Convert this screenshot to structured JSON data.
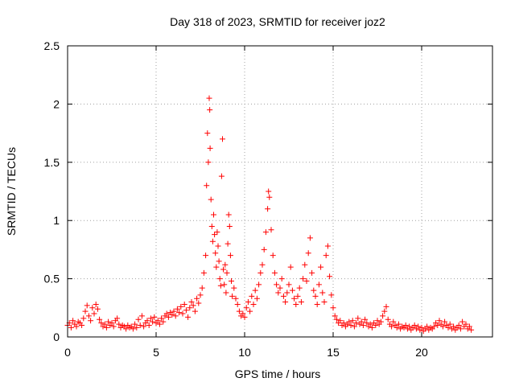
{
  "chart_data": {
    "type": "scatter",
    "title": "Day 318 of 2023, SRMTID for receiver joz2",
    "xlabel": "GPS time / hours",
    "ylabel": "SRMTID / TECUs",
    "xlim": [
      0,
      24
    ],
    "ylim": [
      0,
      2.5
    ],
    "xticks": [
      0,
      5,
      10,
      15,
      20
    ],
    "xtick_labels": [
      "0",
      "5",
      "10",
      "15",
      "20"
    ],
    "yticks": [
      0,
      0.5,
      1,
      1.5,
      2,
      2.5
    ],
    "ytick_labels": [
      "0",
      "0.5",
      "1",
      "1.5",
      "2",
      "2.5"
    ],
    "grid": true,
    "marker": "+",
    "series": [
      {
        "name": "SRMTID",
        "color": "#ff0000",
        "points": [
          [
            0.0,
            0.1
          ],
          [
            0.1,
            0.12
          ],
          [
            0.2,
            0.08
          ],
          [
            0.3,
            0.14
          ],
          [
            0.4,
            0.11
          ],
          [
            0.5,
            0.09
          ],
          [
            0.6,
            0.13
          ],
          [
            0.7,
            0.12
          ],
          [
            0.8,
            0.1
          ],
          [
            0.9,
            0.16
          ],
          [
            1.0,
            0.22
          ],
          [
            1.1,
            0.27
          ],
          [
            1.2,
            0.18
          ],
          [
            1.3,
            0.14
          ],
          [
            1.4,
            0.25
          ],
          [
            1.5,
            0.2
          ],
          [
            1.6,
            0.28
          ],
          [
            1.7,
            0.24
          ],
          [
            1.8,
            0.15
          ],
          [
            1.9,
            0.12
          ],
          [
            2.0,
            0.09
          ],
          [
            2.1,
            0.11
          ],
          [
            2.2,
            0.08
          ],
          [
            2.3,
            0.13
          ],
          [
            2.4,
            0.1
          ],
          [
            2.5,
            0.12
          ],
          [
            2.6,
            0.09
          ],
          [
            2.7,
            0.14
          ],
          [
            2.8,
            0.16
          ],
          [
            2.9,
            0.11
          ],
          [
            3.0,
            0.08
          ],
          [
            3.1,
            0.1
          ],
          [
            3.2,
            0.09
          ],
          [
            3.3,
            0.07
          ],
          [
            3.4,
            0.1
          ],
          [
            3.5,
            0.08
          ],
          [
            3.6,
            0.09
          ],
          [
            3.7,
            0.07
          ],
          [
            3.8,
            0.11
          ],
          [
            3.9,
            0.08
          ],
          [
            4.0,
            0.15
          ],
          [
            4.1,
            0.1
          ],
          [
            4.2,
            0.18
          ],
          [
            4.3,
            0.09
          ],
          [
            4.4,
            0.12
          ],
          [
            4.5,
            0.14
          ],
          [
            4.6,
            0.1
          ],
          [
            4.7,
            0.16
          ],
          [
            4.8,
            0.13
          ],
          [
            4.9,
            0.17
          ],
          [
            5.0,
            0.12
          ],
          [
            5.1,
            0.14
          ],
          [
            5.2,
            0.11
          ],
          [
            5.3,
            0.16
          ],
          [
            5.4,
            0.13
          ],
          [
            5.5,
            0.18
          ],
          [
            5.6,
            0.2
          ],
          [
            5.7,
            0.17
          ],
          [
            5.8,
            0.21
          ],
          [
            5.9,
            0.19
          ],
          [
            6.0,
            0.22
          ],
          [
            6.1,
            0.18
          ],
          [
            6.2,
            0.24
          ],
          [
            6.3,
            0.21
          ],
          [
            6.4,
            0.26
          ],
          [
            6.5,
            0.2
          ],
          [
            6.6,
            0.28
          ],
          [
            6.7,
            0.23
          ],
          [
            6.8,
            0.17
          ],
          [
            6.9,
            0.25
          ],
          [
            7.0,
            0.3
          ],
          [
            7.1,
            0.27
          ],
          [
            7.2,
            0.22
          ],
          [
            7.3,
            0.33
          ],
          [
            7.4,
            0.29
          ],
          [
            7.5,
            0.36
          ],
          [
            7.6,
            0.42
          ],
          [
            7.7,
            0.55
          ],
          [
            7.8,
            0.7
          ],
          [
            7.85,
            1.3
          ],
          [
            7.9,
            1.75
          ],
          [
            7.95,
            1.5
          ],
          [
            8.0,
            2.05
          ],
          [
            8.03,
            1.95
          ],
          [
            8.05,
            1.62
          ],
          [
            8.1,
            1.18
          ],
          [
            8.15,
            0.95
          ],
          [
            8.2,
            0.82
          ],
          [
            8.25,
            1.05
          ],
          [
            8.3,
            0.88
          ],
          [
            8.35,
            0.72
          ],
          [
            8.4,
            0.6
          ],
          [
            8.45,
            0.9
          ],
          [
            8.5,
            0.78
          ],
          [
            8.55,
            0.65
          ],
          [
            8.6,
            0.5
          ],
          [
            8.65,
            0.44
          ],
          [
            8.7,
            1.38
          ],
          [
            8.75,
            1.7
          ],
          [
            8.8,
            0.58
          ],
          [
            8.85,
            0.45
          ],
          [
            8.9,
            0.62
          ],
          [
            8.95,
            0.38
          ],
          [
            9.0,
            0.55
          ],
          [
            9.05,
            0.8
          ],
          [
            9.1,
            1.05
          ],
          [
            9.15,
            0.95
          ],
          [
            9.2,
            0.7
          ],
          [
            9.25,
            0.48
          ],
          [
            9.3,
            0.35
          ],
          [
            9.4,
            0.42
          ],
          [
            9.5,
            0.33
          ],
          [
            9.6,
            0.28
          ],
          [
            9.7,
            0.22
          ],
          [
            9.8,
            0.18
          ],
          [
            9.9,
            0.2
          ],
          [
            10.0,
            0.17
          ],
          [
            10.1,
            0.25
          ],
          [
            10.2,
            0.3
          ],
          [
            10.3,
            0.22
          ],
          [
            10.4,
            0.35
          ],
          [
            10.5,
            0.28
          ],
          [
            10.6,
            0.4
          ],
          [
            10.7,
            0.33
          ],
          [
            10.8,
            0.45
          ],
          [
            10.9,
            0.55
          ],
          [
            11.0,
            0.62
          ],
          [
            11.1,
            0.75
          ],
          [
            11.2,
            0.9
          ],
          [
            11.3,
            1.1
          ],
          [
            11.35,
            1.25
          ],
          [
            11.4,
            1.2
          ],
          [
            11.5,
            0.92
          ],
          [
            11.6,
            0.7
          ],
          [
            11.7,
            0.55
          ],
          [
            11.8,
            0.45
          ],
          [
            11.9,
            0.38
          ],
          [
            12.0,
            0.42
          ],
          [
            12.1,
            0.5
          ],
          [
            12.2,
            0.35
          ],
          [
            12.3,
            0.3
          ],
          [
            12.4,
            0.38
          ],
          [
            12.5,
            0.45
          ],
          [
            12.6,
            0.6
          ],
          [
            12.7,
            0.4
          ],
          [
            12.8,
            0.33
          ],
          [
            12.9,
            0.28
          ],
          [
            13.0,
            0.35
          ],
          [
            13.1,
            0.42
          ],
          [
            13.2,
            0.3
          ],
          [
            13.3,
            0.5
          ],
          [
            13.4,
            0.62
          ],
          [
            13.5,
            0.48
          ],
          [
            13.6,
            0.72
          ],
          [
            13.7,
            0.85
          ],
          [
            13.8,
            0.55
          ],
          [
            13.9,
            0.4
          ],
          [
            14.0,
            0.35
          ],
          [
            14.1,
            0.28
          ],
          [
            14.2,
            0.45
          ],
          [
            14.3,
            0.6
          ],
          [
            14.4,
            0.38
          ],
          [
            14.5,
            0.3
          ],
          [
            14.6,
            0.7
          ],
          [
            14.7,
            0.78
          ],
          [
            14.8,
            0.52
          ],
          [
            14.9,
            0.36
          ],
          [
            15.0,
            0.25
          ],
          [
            15.1,
            0.18
          ],
          [
            15.2,
            0.15
          ],
          [
            15.3,
            0.12
          ],
          [
            15.4,
            0.14
          ],
          [
            15.5,
            0.1
          ],
          [
            15.6,
            0.12
          ],
          [
            15.7,
            0.09
          ],
          [
            15.8,
            0.11
          ],
          [
            15.9,
            0.13
          ],
          [
            16.0,
            0.1
          ],
          [
            16.1,
            0.14
          ],
          [
            16.2,
            0.09
          ],
          [
            16.3,
            0.12
          ],
          [
            16.4,
            0.16
          ],
          [
            16.5,
            0.11
          ],
          [
            16.6,
            0.13
          ],
          [
            16.7,
            0.1
          ],
          [
            16.8,
            0.15
          ],
          [
            16.9,
            0.12
          ],
          [
            17.0,
            0.09
          ],
          [
            17.1,
            0.11
          ],
          [
            17.2,
            0.08
          ],
          [
            17.3,
            0.12
          ],
          [
            17.4,
            0.1
          ],
          [
            17.5,
            0.14
          ],
          [
            17.6,
            0.11
          ],
          [
            17.7,
            0.13
          ],
          [
            17.8,
            0.18
          ],
          [
            17.9,
            0.22
          ],
          [
            18.0,
            0.26
          ],
          [
            18.1,
            0.15
          ],
          [
            18.2,
            0.11
          ],
          [
            18.3,
            0.09
          ],
          [
            18.4,
            0.13
          ],
          [
            18.5,
            0.1
          ],
          [
            18.6,
            0.08
          ],
          [
            18.7,
            0.11
          ],
          [
            18.8,
            0.07
          ],
          [
            18.9,
            0.09
          ],
          [
            19.0,
            0.08
          ],
          [
            19.1,
            0.1
          ],
          [
            19.2,
            0.07
          ],
          [
            19.3,
            0.09
          ],
          [
            19.4,
            0.06
          ],
          [
            19.5,
            0.08
          ],
          [
            19.6,
            0.1
          ],
          [
            19.7,
            0.07
          ],
          [
            19.8,
            0.09
          ],
          [
            19.9,
            0.06
          ],
          [
            20.0,
            0.08
          ],
          [
            20.1,
            0.05
          ],
          [
            20.2,
            0.07
          ],
          [
            20.3,
            0.09
          ],
          [
            20.4,
            0.06
          ],
          [
            20.5,
            0.08
          ],
          [
            20.6,
            0.07
          ],
          [
            20.7,
            0.09
          ],
          [
            20.8,
            0.12
          ],
          [
            20.9,
            0.1
          ],
          [
            21.0,
            0.14
          ],
          [
            21.1,
            0.11
          ],
          [
            21.2,
            0.09
          ],
          [
            21.3,
            0.13
          ],
          [
            21.4,
            0.1
          ],
          [
            21.5,
            0.08
          ],
          [
            21.6,
            0.11
          ],
          [
            21.7,
            0.07
          ],
          [
            21.8,
            0.09
          ],
          [
            21.9,
            0.06
          ],
          [
            22.0,
            0.08
          ],
          [
            22.1,
            0.1
          ],
          [
            22.2,
            0.07
          ],
          [
            22.3,
            0.13
          ],
          [
            22.4,
            0.09
          ],
          [
            22.5,
            0.11
          ],
          [
            22.6,
            0.07
          ],
          [
            22.7,
            0.09
          ],
          [
            22.8,
            0.06
          ]
        ]
      }
    ]
  }
}
